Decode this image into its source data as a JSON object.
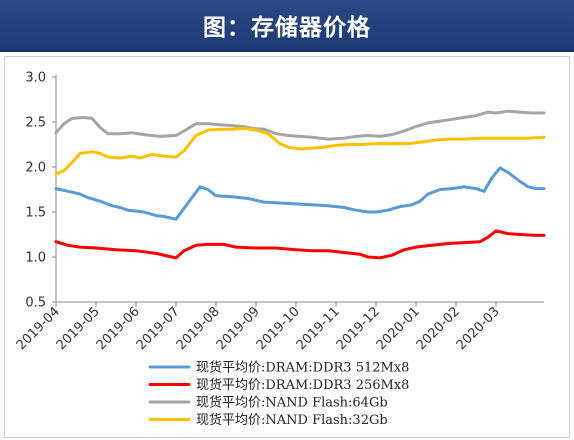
{
  "header": {
    "title": "图：存储器价格"
  },
  "chart_data": {
    "type": "line",
    "title": "",
    "xlabel": "",
    "ylabel": "",
    "ylim": [
      0.5,
      3.0
    ],
    "yticks": [
      "0.5",
      "1.0",
      "1.5",
      "2.0",
      "2.5",
      "3.0"
    ],
    "grid": false,
    "legend_position": "bottom",
    "x_labels": [
      "2019-04",
      "2019-05",
      "2019-06",
      "2019-07",
      "2019-08",
      "2019-09",
      "2019-10",
      "2019-11",
      "2019-12",
      "2020-01",
      "2020-02",
      "2020-03"
    ],
    "series": [
      {
        "name": "现货平均价:DRAM:DDR3 512Mx8",
        "color": "#5b9bd5",
        "points": [
          [
            0,
            1.76
          ],
          [
            0.3,
            1.73
          ],
          [
            0.6,
            1.7
          ],
          [
            0.8,
            1.66
          ],
          [
            1.1,
            1.62
          ],
          [
            1.4,
            1.57
          ],
          [
            1.6,
            1.55
          ],
          [
            1.8,
            1.52
          ],
          [
            2.2,
            1.5
          ],
          [
            2.5,
            1.46
          ],
          [
            2.7,
            1.45
          ],
          [
            3.0,
            1.42
          ],
          [
            3.3,
            1.6
          ],
          [
            3.6,
            1.78
          ],
          [
            3.8,
            1.75
          ],
          [
            4.0,
            1.68
          ],
          [
            4.4,
            1.67
          ],
          [
            4.8,
            1.65
          ],
          [
            5.2,
            1.61
          ],
          [
            5.6,
            1.6
          ],
          [
            6.0,
            1.59
          ],
          [
            6.4,
            1.58
          ],
          [
            6.8,
            1.57
          ],
          [
            7.2,
            1.55
          ],
          [
            7.5,
            1.52
          ],
          [
            7.8,
            1.5
          ],
          [
            8.0,
            1.5
          ],
          [
            8.3,
            1.52
          ],
          [
            8.6,
            1.56
          ],
          [
            8.9,
            1.58
          ],
          [
            9.1,
            1.62
          ],
          [
            9.3,
            1.7
          ],
          [
            9.6,
            1.75
          ],
          [
            9.9,
            1.76
          ],
          [
            10.2,
            1.78
          ],
          [
            10.5,
            1.76
          ],
          [
            10.7,
            1.73
          ],
          [
            10.9,
            1.88
          ],
          [
            11.1,
            1.99
          ],
          [
            11.3,
            1.94
          ],
          [
            11.6,
            1.84
          ],
          [
            11.8,
            1.78
          ],
          [
            12.0,
            1.76
          ],
          [
            12.2,
            1.76
          ]
        ]
      },
      {
        "name": "现货平均价:DRAM:DDR3 256Mx8",
        "color": "#ff0000",
        "points": [
          [
            0,
            1.17
          ],
          [
            0.3,
            1.13
          ],
          [
            0.6,
            1.11
          ],
          [
            1.0,
            1.1
          ],
          [
            1.5,
            1.08
          ],
          [
            2.0,
            1.07
          ],
          [
            2.5,
            1.04
          ],
          [
            2.8,
            1.01
          ],
          [
            3.0,
            0.99
          ],
          [
            3.2,
            1.07
          ],
          [
            3.5,
            1.13
          ],
          [
            3.8,
            1.14
          ],
          [
            4.2,
            1.14
          ],
          [
            4.5,
            1.11
          ],
          [
            5.0,
            1.1
          ],
          [
            5.5,
            1.1
          ],
          [
            6.0,
            1.08
          ],
          [
            6.4,
            1.07
          ],
          [
            6.8,
            1.07
          ],
          [
            7.2,
            1.05
          ],
          [
            7.6,
            1.03
          ],
          [
            7.8,
            1.0
          ],
          [
            8.1,
            0.99
          ],
          [
            8.4,
            1.02
          ],
          [
            8.7,
            1.08
          ],
          [
            9.0,
            1.11
          ],
          [
            9.4,
            1.13
          ],
          [
            9.8,
            1.15
          ],
          [
            10.2,
            1.16
          ],
          [
            10.6,
            1.17
          ],
          [
            10.8,
            1.22
          ],
          [
            11.0,
            1.29
          ],
          [
            11.3,
            1.26
          ],
          [
            11.6,
            1.25
          ],
          [
            12.0,
            1.24
          ],
          [
            12.2,
            1.24
          ]
        ]
      },
      {
        "name": "现货平均价:NAND Flash:64Gb",
        "color": "#a5a5a5",
        "points": [
          [
            0,
            2.38
          ],
          [
            0.2,
            2.48
          ],
          [
            0.4,
            2.54
          ],
          [
            0.7,
            2.55
          ],
          [
            0.9,
            2.54
          ],
          [
            1.1,
            2.44
          ],
          [
            1.3,
            2.37
          ],
          [
            1.6,
            2.37
          ],
          [
            1.9,
            2.38
          ],
          [
            2.2,
            2.36
          ],
          [
            2.6,
            2.34
          ],
          [
            3.0,
            2.35
          ],
          [
            3.2,
            2.4
          ],
          [
            3.5,
            2.48
          ],
          [
            3.8,
            2.48
          ],
          [
            4.1,
            2.47
          ],
          [
            4.4,
            2.46
          ],
          [
            4.7,
            2.45
          ],
          [
            4.9,
            2.43
          ],
          [
            5.2,
            2.42
          ],
          [
            5.5,
            2.37
          ],
          [
            5.8,
            2.35
          ],
          [
            6.1,
            2.34
          ],
          [
            6.4,
            2.33
          ],
          [
            6.8,
            2.31
          ],
          [
            7.2,
            2.32
          ],
          [
            7.5,
            2.34
          ],
          [
            7.8,
            2.35
          ],
          [
            8.1,
            2.34
          ],
          [
            8.4,
            2.36
          ],
          [
            8.7,
            2.4
          ],
          [
            9.0,
            2.45
          ],
          [
            9.3,
            2.49
          ],
          [
            9.6,
            2.51
          ],
          [
            9.9,
            2.53
          ],
          [
            10.2,
            2.55
          ],
          [
            10.5,
            2.57
          ],
          [
            10.8,
            2.61
          ],
          [
            11.0,
            2.6
          ],
          [
            11.3,
            2.62
          ],
          [
            11.6,
            2.61
          ],
          [
            11.9,
            2.6
          ],
          [
            12.2,
            2.6
          ]
        ]
      },
      {
        "name": "现货平均价:NAND Flash:32Gb",
        "color": "#ffc000",
        "points": [
          [
            0,
            1.92
          ],
          [
            0.2,
            1.96
          ],
          [
            0.4,
            2.05
          ],
          [
            0.6,
            2.15
          ],
          [
            0.9,
            2.17
          ],
          [
            1.1,
            2.15
          ],
          [
            1.3,
            2.11
          ],
          [
            1.6,
            2.1
          ],
          [
            1.9,
            2.12
          ],
          [
            2.1,
            2.1
          ],
          [
            2.4,
            2.14
          ],
          [
            2.7,
            2.12
          ],
          [
            3.0,
            2.11
          ],
          [
            3.2,
            2.18
          ],
          [
            3.5,
            2.35
          ],
          [
            3.8,
            2.41
          ],
          [
            4.1,
            2.42
          ],
          [
            4.4,
            2.42
          ],
          [
            4.7,
            2.43
          ],
          [
            5.0,
            2.41
          ],
          [
            5.3,
            2.37
          ],
          [
            5.6,
            2.26
          ],
          [
            5.8,
            2.22
          ],
          [
            6.1,
            2.2
          ],
          [
            6.4,
            2.21
          ],
          [
            6.7,
            2.22
          ],
          [
            7.0,
            2.24
          ],
          [
            7.3,
            2.25
          ],
          [
            7.6,
            2.25
          ],
          [
            8.0,
            2.26
          ],
          [
            8.4,
            2.26
          ],
          [
            8.8,
            2.26
          ],
          [
            9.2,
            2.28
          ],
          [
            9.5,
            2.3
          ],
          [
            9.8,
            2.31
          ],
          [
            10.2,
            2.31
          ],
          [
            10.6,
            2.32
          ],
          [
            11.0,
            2.32
          ],
          [
            11.4,
            2.32
          ],
          [
            11.8,
            2.32
          ],
          [
            12.2,
            2.33
          ]
        ]
      }
    ]
  }
}
